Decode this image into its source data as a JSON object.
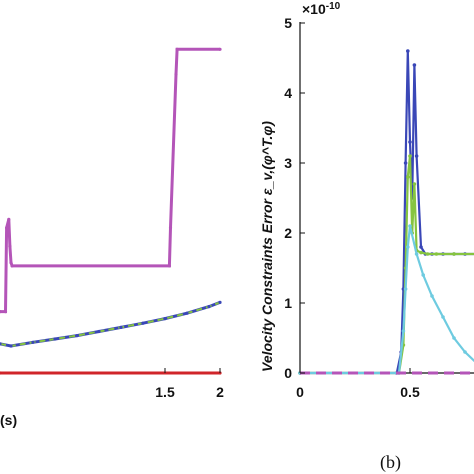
{
  "chart_data": [
    {
      "panel": "left",
      "type": "line",
      "xlabel": "(s)",
      "xlim": [
        0,
        2
      ],
      "xticks": [
        "1.5",
        "2"
      ],
      "series": [
        {
          "color": "#b455b8",
          "x": [
            0,
            0.05,
            0.06,
            0.08,
            0.09,
            0.1,
            0.11,
            1.54,
            1.55,
            1.6,
            1.61,
            2.0
          ],
          "y": [
            0.148,
            0.148,
            0.35,
            0.37,
            0.305,
            0.266,
            0.258,
            0.258,
            0.35,
            0.72,
            0.78,
            0.78
          ]
        },
        {
          "color": "#3a47b7",
          "dashed_overlay": "#86c440",
          "x": [
            0,
            0.1,
            0.3,
            0.5,
            0.7,
            0.9,
            1.1,
            1.3,
            1.5,
            1.7,
            1.9,
            2.0
          ],
          "y": [
            0.07,
            0.065,
            0.074,
            0.082,
            0.09,
            0.1,
            0.11,
            0.12,
            0.131,
            0.144,
            0.16,
            0.17
          ]
        },
        {
          "color": "#d0252a",
          "x": [
            0,
            2
          ],
          "y": [
            0,
            0
          ]
        }
      ]
    },
    {
      "panel": "right",
      "type": "line",
      "ylabel": "Velocity Constraints Error ε_v,(φ^T.φ)",
      "yscale_text": "×10",
      "yscale_exp": "-10",
      "ylim": [
        0,
        5
      ],
      "yticks": [
        "0",
        "1",
        "2",
        "3",
        "4",
        "5"
      ],
      "xlim": [
        0,
        0.85
      ],
      "xticks": [
        "0",
        "0.5"
      ],
      "series": [
        {
          "color": "#3a47b7",
          "x": [
            0,
            0.44,
            0.46,
            0.47,
            0.48,
            0.49,
            0.5,
            0.51,
            0.52,
            0.53,
            0.55,
            0.57,
            0.6,
            0.65,
            0.7,
            0.75,
            0.8,
            0.85
          ],
          "y": [
            0,
            0,
            0.3,
            1.2,
            3.0,
            4.6,
            3.3,
            2.5,
            4.4,
            3.1,
            1.8,
            1.7,
            1.7,
            1.7,
            1.7,
            1.7,
            1.7,
            1.7
          ]
        },
        {
          "color": "#86c440",
          "x": [
            0,
            0.45,
            0.47,
            0.48,
            0.49,
            0.5,
            0.51,
            0.52,
            0.53,
            0.55,
            0.58,
            0.62,
            0.7,
            0.8,
            0.85
          ],
          "y": [
            0,
            0,
            0.4,
            1.5,
            2.8,
            3.1,
            2.0,
            2.7,
            1.75,
            1.72,
            1.7,
            1.7,
            1.7,
            1.7,
            1.7
          ]
        },
        {
          "color": "#6ecbe0",
          "x": [
            0,
            0.45,
            0.47,
            0.48,
            0.49,
            0.5,
            0.53,
            0.56,
            0.6,
            0.65,
            0.7,
            0.75,
            0.8,
            0.85
          ],
          "y": [
            0,
            0,
            0.6,
            1.2,
            1.8,
            2.1,
            1.7,
            1.4,
            1.1,
            0.8,
            0.5,
            0.3,
            0.15,
            0.1
          ]
        },
        {
          "color": "#b455b8",
          "dashed": true,
          "x": [
            0,
            0.85
          ],
          "y": [
            0,
            0
          ]
        }
      ]
    }
  ],
  "caption": "(b)"
}
